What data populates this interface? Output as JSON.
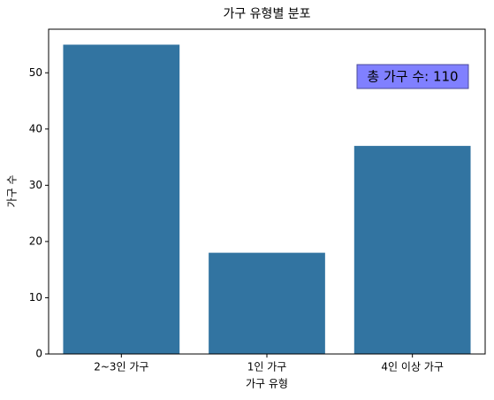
{
  "chart_data": {
    "type": "bar",
    "title": "가구 유형별 분포",
    "x_label": "가구 유형",
    "y_label": "가구 수",
    "categories": [
      "2~3인 가구",
      "1인 가구",
      "4인 이상 가구"
    ],
    "values": [
      55,
      18,
      37
    ],
    "color": "#3274a1",
    "ylim": [
      0,
      57.75
    ],
    "yticks": [
      0,
      10,
      20,
      30,
      40,
      50
    ],
    "grid": false,
    "annotation": "총 가구 수: 110"
  }
}
